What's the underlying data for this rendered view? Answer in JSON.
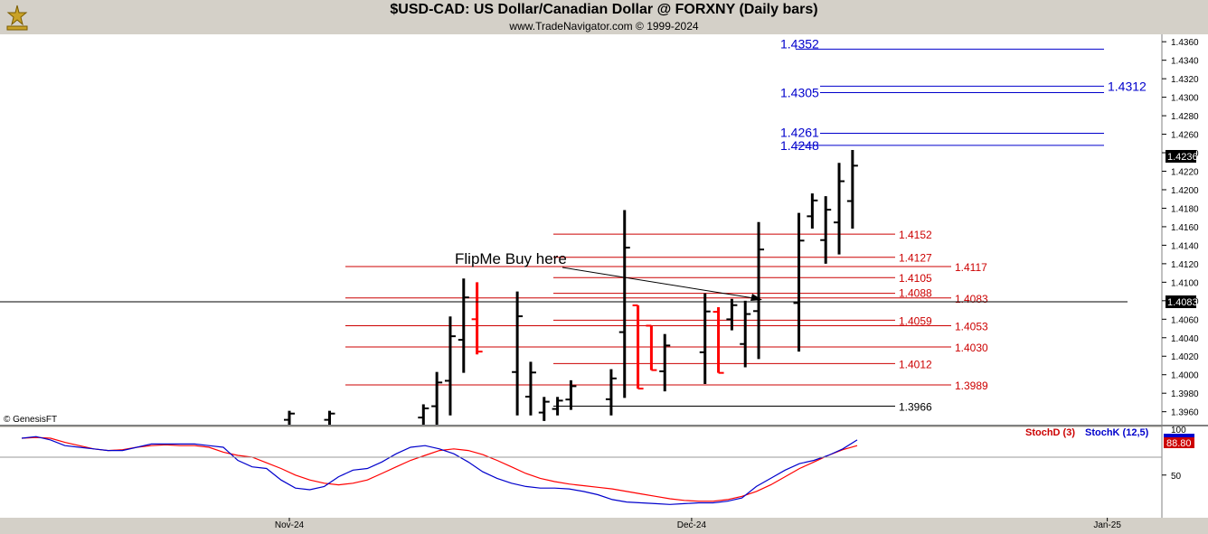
{
  "header": {
    "title": "$USD-CAD:  US Dollar/Canadian Dollar @ FORXNY  (Daily bars)",
    "subtitle": "www.TradeNavigator.com © 1999-2024"
  },
  "copyright": "© GenesisFT",
  "chart_data": [
    {
      "type": "bar",
      "name": "price",
      "ylim": [
        1.3946,
        1.4368
      ],
      "y_ticks": [
        "1.3960",
        "1.3980",
        "1.4000",
        "1.4020",
        "1.4040",
        "1.4060",
        "1.4080",
        "1.4100",
        "1.4120",
        "1.4140",
        "1.4160",
        "1.4180",
        "1.4200",
        "1.4220",
        "1.4240",
        "1.4260",
        "1.4280",
        "1.4300",
        "1.4320",
        "1.4340",
        "1.4360"
      ],
      "x_ticks": [
        "Nov-24",
        "Dec-24",
        "Jan-25"
      ],
      "current_price": {
        "label": "1.4236",
        "value": 1.4236
      },
      "crosshair": {
        "label": "1.4083",
        "value": 1.4083
      },
      "annotation": {
        "text": "FlipMe Buy here",
        "points_to": {
          "date": "2024-12-05",
          "value": 1.4088
        }
      },
      "bars": [
        {
          "date": "2024-11-01",
          "high": 1.3961,
          "low": 1.3946,
          "color": "#000000"
        },
        {
          "date": "2024-11-04",
          "high": 1.3961,
          "low": 1.3946,
          "color": "#000000"
        },
        {
          "date": "2024-11-11",
          "high": 1.3968,
          "low": 1.3946,
          "color": "#000000"
        },
        {
          "date": "2024-11-12",
          "high": 1.4003,
          "low": 1.3946,
          "color": "#000000"
        },
        {
          "date": "2024-11-13",
          "high": 1.4063,
          "low": 1.3956,
          "color": "#000000"
        },
        {
          "date": "2024-11-14",
          "high": 1.4104,
          "low": 1.4002,
          "color": "#000000"
        },
        {
          "date": "2024-11-15",
          "high": 1.41,
          "low": 1.4022,
          "open": 1.406,
          "close": 1.4025,
          "color": "#ff0000"
        },
        {
          "date": "2024-11-18",
          "high": 1.409,
          "low": 1.3956,
          "color": "#000000"
        },
        {
          "date": "2024-11-19",
          "high": 1.4014,
          "low": 1.3956,
          "color": "#000000"
        },
        {
          "date": "2024-11-20",
          "high": 1.3976,
          "low": 1.395,
          "color": "#000000"
        },
        {
          "date": "2024-11-21",
          "high": 1.3976,
          "low": 1.3956,
          "color": "#000000"
        },
        {
          "date": "2024-11-22",
          "high": 1.3994,
          "low": 1.3962,
          "color": "#000000"
        },
        {
          "date": "2024-11-25",
          "high": 1.4006,
          "low": 1.3956,
          "color": "#000000"
        },
        {
          "date": "2024-11-26",
          "high": 1.4178,
          "low": 1.3975,
          "color": "#000000"
        },
        {
          "date": "2024-11-27",
          "high": 1.4075,
          "low": 1.3985,
          "open": 1.4075,
          "close": 1.3985,
          "color": "#ff0000"
        },
        {
          "date": "2024-11-28",
          "high": 1.4053,
          "low": 1.4005,
          "open": 1.4053,
          "close": 1.4005,
          "color": "#ff0000"
        },
        {
          "date": "2024-11-29",
          "high": 1.4044,
          "low": 1.3982,
          "color": "#000000"
        },
        {
          "date": "2024-12-02",
          "high": 1.4088,
          "low": 1.399,
          "color": "#000000"
        },
        {
          "date": "2024-12-03",
          "high": 1.4073,
          "low": 1.4002,
          "open": 1.4068,
          "close": 1.4002,
          "color": "#ff0000"
        },
        {
          "date": "2024-12-04",
          "high": 1.4082,
          "low": 1.4048,
          "color": "#000000"
        },
        {
          "date": "2024-12-05",
          "high": 1.408,
          "low": 1.4008,
          "color": "#000000"
        },
        {
          "date": "2024-12-06",
          "high": 1.4165,
          "low": 1.4017,
          "color": "#000000"
        },
        {
          "date": "2024-12-09",
          "high": 1.4175,
          "low": 1.4025,
          "color": "#000000"
        },
        {
          "date": "2024-12-10",
          "high": 1.4196,
          "low": 1.4158,
          "color": "#000000"
        },
        {
          "date": "2024-12-11",
          "high": 1.4193,
          "low": 1.412,
          "color": "#000000"
        },
        {
          "date": "2024-12-12",
          "high": 1.4229,
          "low": 1.413,
          "color": "#000000"
        },
        {
          "date": "2024-12-13",
          "high": 1.4243,
          "low": 1.4158,
          "color": "#000000"
        }
      ],
      "levels": [
        {
          "label": "1.4352",
          "value": 1.4352,
          "color": "#0000cc",
          "style": "blue"
        },
        {
          "label": "1.4312",
          "value": 1.4312,
          "color": "#0000cc",
          "style": "blue"
        },
        {
          "label": "1.4305",
          "value": 1.4305,
          "color": "#0000cc",
          "style": "blue"
        },
        {
          "label": "1.4261",
          "value": 1.4261,
          "color": "#0000cc",
          "style": "blue"
        },
        {
          "label": "1.4248",
          "value": 1.4248,
          "color": "#0000cc",
          "style": "blue"
        },
        {
          "label": "1.4152",
          "value": 1.4152,
          "color": "#cc0000",
          "style": "red"
        },
        {
          "label": "1.4127",
          "value": 1.4127,
          "color": "#cc0000",
          "style": "red"
        },
        {
          "label": "1.4117",
          "value": 1.4117,
          "color": "#cc0000",
          "style": "red"
        },
        {
          "label": "1.4105",
          "value": 1.4105,
          "color": "#cc0000",
          "style": "red"
        },
        {
          "label": "1.4088",
          "value": 1.4088,
          "color": "#cc0000",
          "style": "red"
        },
        {
          "label": "1.4083",
          "value": 1.4083,
          "color": "#cc0000",
          "style": "red"
        },
        {
          "label": "1.4059",
          "value": 1.4059,
          "color": "#cc0000",
          "style": "red"
        },
        {
          "label": "1.4053",
          "value": 1.4053,
          "color": "#cc0000",
          "style": "red"
        },
        {
          "label": "1.4030",
          "value": 1.403,
          "color": "#cc0000",
          "style": "red"
        },
        {
          "label": "1.4012",
          "value": 1.4012,
          "color": "#cc0000",
          "style": "red"
        },
        {
          "label": "1.3989",
          "value": 1.3989,
          "color": "#cc0000",
          "style": "red"
        },
        {
          "label": "1.3966",
          "value": 1.3966,
          "color": "#000000",
          "style": "black"
        }
      ]
    },
    {
      "type": "line",
      "name": "stochastic",
      "ylim": [
        0,
        105
      ],
      "y_ticks": [
        "50"
      ],
      "y_ticks_values": [
        50
      ],
      "current_value_label": "88.80",
      "overlap_label": "100",
      "series": [
        {
          "name": "StochD (3)",
          "color": "#ff0000",
          "points": [
            [
              1,
              95
            ],
            [
              2,
              96
            ],
            [
              3,
              95
            ],
            [
              4,
              90
            ],
            [
              5,
              86
            ],
            [
              6,
              82
            ],
            [
              7,
              80
            ],
            [
              8,
              81
            ],
            [
              9,
              84
            ],
            [
              10,
              86
            ],
            [
              11,
              87
            ],
            [
              12,
              86
            ],
            [
              13,
              86
            ],
            [
              14,
              84
            ],
            [
              15,
              78
            ],
            [
              16,
              74
            ],
            [
              17,
              72
            ],
            [
              18,
              65
            ],
            [
              19,
              58
            ],
            [
              20,
              50
            ],
            [
              21,
              44
            ],
            [
              22,
              40
            ],
            [
              23,
              38
            ],
            [
              24,
              40
            ],
            [
              25,
              44
            ],
            [
              26,
              52
            ],
            [
              27,
              60
            ],
            [
              28,
              68
            ],
            [
              29,
              74
            ],
            [
              30,
              80
            ],
            [
              31,
              82
            ],
            [
              32,
              80
            ],
            [
              33,
              75
            ],
            [
              34,
              68
            ],
            [
              35,
              60
            ],
            [
              36,
              52
            ],
            [
              37,
              46
            ],
            [
              38,
              42
            ],
            [
              39,
              39
            ],
            [
              40,
              37
            ],
            [
              41,
              35
            ],
            [
              42,
              33
            ],
            [
              43,
              30
            ],
            [
              44,
              27
            ],
            [
              45,
              24
            ],
            [
              46,
              21
            ],
            [
              47,
              19
            ],
            [
              48,
              18
            ],
            [
              49,
              18
            ],
            [
              50,
              20
            ],
            [
              51,
              24
            ],
            [
              52,
              30
            ],
            [
              53,
              38
            ],
            [
              54,
              48
            ],
            [
              55,
              58
            ],
            [
              56,
              66
            ],
            [
              57,
              74
            ],
            [
              58,
              81
            ],
            [
              59,
              86
            ]
          ]
        },
        {
          "name": "StochK (12,5)",
          "color": "#0000cc",
          "points": [
            [
              1,
              95
            ],
            [
              2,
              97
            ],
            [
              3,
              93
            ],
            [
              4,
              86
            ],
            [
              5,
              84
            ],
            [
              6,
              82
            ],
            [
              7,
              80
            ],
            [
              8,
              80
            ],
            [
              9,
              84
            ],
            [
              10,
              88
            ],
            [
              11,
              88
            ],
            [
              12,
              88
            ],
            [
              13,
              88
            ],
            [
              14,
              86
            ],
            [
              15,
              84
            ],
            [
              16,
              68
            ],
            [
              17,
              60
            ],
            [
              18,
              58
            ],
            [
              19,
              44
            ],
            [
              20,
              34
            ],
            [
              21,
              32
            ],
            [
              22,
              36
            ],
            [
              23,
              48
            ],
            [
              24,
              56
            ],
            [
              25,
              58
            ],
            [
              26,
              66
            ],
            [
              27,
              76
            ],
            [
              28,
              84
            ],
            [
              29,
              86
            ],
            [
              30,
              82
            ],
            [
              31,
              76
            ],
            [
              32,
              66
            ],
            [
              33,
              54
            ],
            [
              34,
              46
            ],
            [
              35,
              40
            ],
            [
              36,
              36
            ],
            [
              37,
              34
            ],
            [
              38,
              34
            ],
            [
              39,
              33
            ],
            [
              40,
              30
            ],
            [
              41,
              26
            ],
            [
              42,
              20
            ],
            [
              43,
              17
            ],
            [
              44,
              16
            ],
            [
              45,
              15
            ],
            [
              46,
              14
            ],
            [
              47,
              15
            ],
            [
              48,
              16
            ],
            [
              49,
              16
            ],
            [
              50,
              18
            ],
            [
              51,
              22
            ],
            [
              52,
              36
            ],
            [
              53,
              46
            ],
            [
              54,
              56
            ],
            [
              55,
              64
            ],
            [
              56,
              68
            ],
            [
              57,
              74
            ],
            [
              58,
              82
            ],
            [
              59,
              93
            ]
          ]
        }
      ]
    }
  ]
}
